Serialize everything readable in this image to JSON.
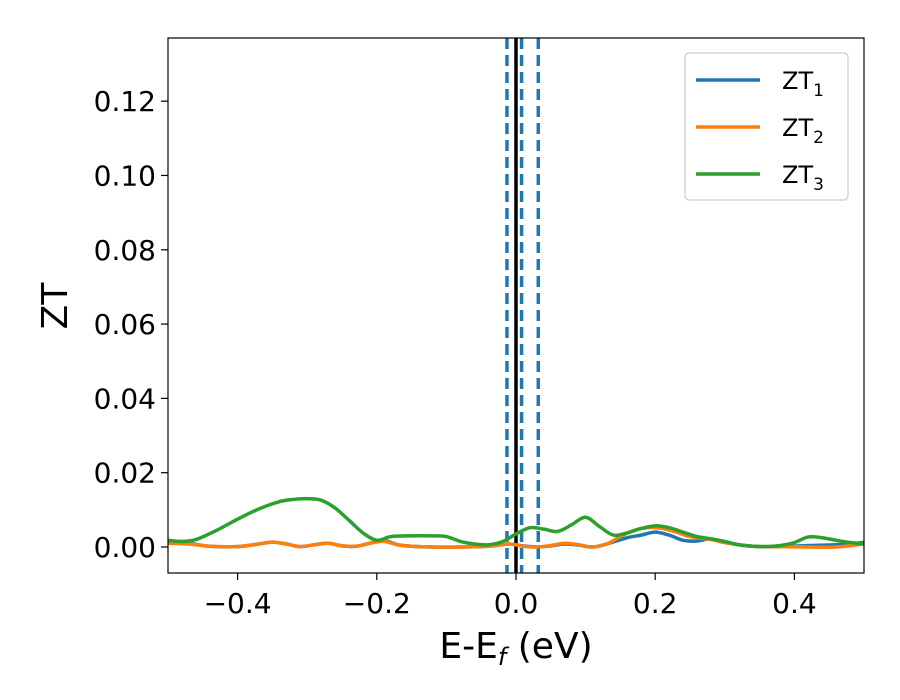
{
  "chart_data": {
    "type": "line",
    "xlabel": "E-E",
    "xlabel_sub": "f",
    "xlabel_unit": " (eV)",
    "ylabel": "ZT",
    "xlim": [
      -0.5,
      0.5
    ],
    "ylim": [
      -0.007,
      0.137
    ],
    "grid": false,
    "legend_position": "top-right",
    "x_ticks": [
      {
        "value": -0.4,
        "label": "−0.4"
      },
      {
        "value": -0.2,
        "label": "−0.2"
      },
      {
        "value": 0.0,
        "label": "0.0"
      },
      {
        "value": 0.2,
        "label": "0.2"
      },
      {
        "value": 0.4,
        "label": "0.4"
      }
    ],
    "y_ticks": [
      {
        "value": 0.0,
        "label": "0.00"
      },
      {
        "value": 0.02,
        "label": "0.02"
      },
      {
        "value": 0.04,
        "label": "0.04"
      },
      {
        "value": 0.06,
        "label": "0.06"
      },
      {
        "value": 0.08,
        "label": "0.08"
      },
      {
        "value": 0.1,
        "label": "0.10"
      },
      {
        "value": 0.12,
        "label": "0.12"
      }
    ],
    "vlines": [
      {
        "x": 0.0,
        "style": "solid",
        "color": "#000000"
      },
      {
        "x": -0.013,
        "style": "dashed",
        "color": "#1f77b4"
      },
      {
        "x": 0.008,
        "style": "dashed",
        "color": "#1f77b4"
      },
      {
        "x": 0.032,
        "style": "dashed",
        "color": "#1f77b4"
      }
    ],
    "series": [
      {
        "name": "ZT",
        "name_sub": "1",
        "color": "#1f77b4",
        "x": [
          -0.5,
          -0.47,
          -0.44,
          -0.4,
          -0.37,
          -0.35,
          -0.33,
          -0.31,
          -0.29,
          -0.27,
          -0.25,
          -0.23,
          -0.21,
          -0.19,
          -0.17,
          -0.15,
          -0.12,
          -0.08,
          -0.04,
          -0.01,
          0.01,
          0.03,
          0.05,
          0.07,
          0.09,
          0.11,
          0.13,
          0.16,
          0.18,
          0.2,
          0.22,
          0.24,
          0.26,
          0.28,
          0.3,
          0.34,
          0.38,
          0.42,
          0.46,
          0.5
        ],
        "y": [
          0.0015,
          0.001,
          0.0002,
          0.0001,
          0.0008,
          0.0013,
          0.0008,
          0.0001,
          0.0006,
          0.001,
          0.0003,
          0.0002,
          0.001,
          0.0018,
          0.0006,
          0.0002,
          0.0,
          0.0,
          0.0002,
          0.0008,
          0.0003,
          0.0,
          0.0003,
          0.0008,
          0.0005,
          0.0,
          0.0008,
          0.0025,
          0.0032,
          0.004,
          0.0032,
          0.0018,
          0.0016,
          0.0022,
          0.0012,
          0.0002,
          0.0001,
          0.0004,
          0.0006,
          0.0012
        ]
      },
      {
        "name": "ZT",
        "name_sub": "2",
        "color": "#ff7f0e",
        "x": [
          -0.5,
          -0.47,
          -0.44,
          -0.4,
          -0.37,
          -0.35,
          -0.33,
          -0.31,
          -0.29,
          -0.27,
          -0.25,
          -0.23,
          -0.21,
          -0.19,
          -0.17,
          -0.15,
          -0.12,
          -0.08,
          -0.04,
          -0.01,
          0.01,
          0.03,
          0.05,
          0.07,
          0.09,
          0.11,
          0.13,
          0.15,
          0.17,
          0.19,
          0.21,
          0.23,
          0.25,
          0.28,
          0.3,
          0.34,
          0.38,
          0.42,
          0.46,
          0.5
        ],
        "y": [
          0.001,
          0.0008,
          0.0002,
          0.0001,
          0.0008,
          0.0013,
          0.0008,
          0.0001,
          0.0006,
          0.001,
          0.0003,
          0.0002,
          0.001,
          0.0015,
          0.0006,
          0.0002,
          0.0,
          0.0,
          0.0002,
          0.0008,
          0.0002,
          0.0,
          0.0004,
          0.001,
          0.0006,
          0.0,
          0.0008,
          0.0028,
          0.0045,
          0.0052,
          0.005,
          0.004,
          0.0028,
          0.002,
          0.0012,
          0.0002,
          0.0001,
          0.0,
          0.0,
          0.0008
        ]
      },
      {
        "name": "ZT",
        "name_sub": "3",
        "color": "#2ca02c",
        "x": [
          -0.5,
          -0.48,
          -0.46,
          -0.43,
          -0.4,
          -0.37,
          -0.34,
          -0.32,
          -0.3,
          -0.28,
          -0.26,
          -0.24,
          -0.22,
          -0.2,
          -0.18,
          -0.15,
          -0.12,
          -0.1,
          -0.08,
          -0.06,
          -0.04,
          -0.02,
          0.0,
          0.02,
          0.04,
          0.06,
          0.08,
          0.1,
          0.12,
          0.14,
          0.16,
          0.18,
          0.2,
          0.22,
          0.24,
          0.26,
          0.28,
          0.3,
          0.32,
          0.34,
          0.36,
          0.38,
          0.4,
          0.42,
          0.44,
          0.46,
          0.48,
          0.5
        ],
        "y": [
          0.0018,
          0.0015,
          0.002,
          0.0045,
          0.0075,
          0.0102,
          0.0122,
          0.0128,
          0.013,
          0.0126,
          0.0105,
          0.0072,
          0.0038,
          0.0018,
          0.0028,
          0.003,
          0.003,
          0.0028,
          0.0015,
          0.0008,
          0.0006,
          0.0014,
          0.0035,
          0.0052,
          0.0048,
          0.0042,
          0.006,
          0.008,
          0.0055,
          0.0032,
          0.0038,
          0.005,
          0.0057,
          0.0052,
          0.004,
          0.0028,
          0.0022,
          0.0015,
          0.0006,
          0.0002,
          0.0001,
          0.0004,
          0.0012,
          0.0027,
          0.0025,
          0.0018,
          0.0012,
          0.0008
        ]
      }
    ]
  }
}
